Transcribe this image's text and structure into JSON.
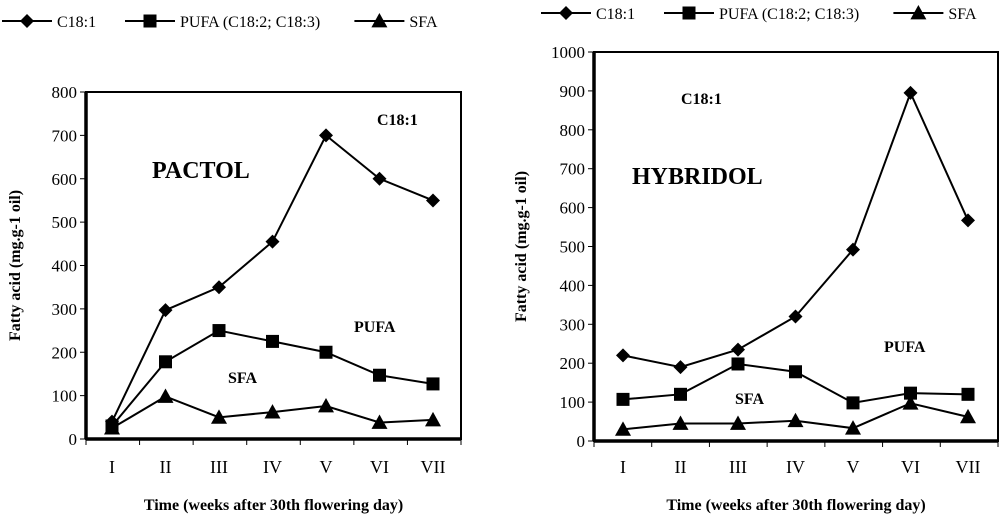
{
  "chart_data": [
    {
      "type": "line",
      "title": "PACTOL",
      "xlabel": "Time (weeks after 30th flowering day)",
      "ylabel": "Fatty acid (mg.g-1 oil)",
      "categories": [
        "I",
        "II",
        "III",
        "IV",
        "V",
        "VI",
        "VII"
      ],
      "ylim": [
        0,
        800
      ],
      "yticks": [
        0,
        100,
        200,
        300,
        400,
        500,
        600,
        700,
        800
      ],
      "legend": {
        "placement": "top",
        "entries": [
          "C18:1",
          "PUFA (C18:2; C18:3)",
          "SFA"
        ]
      },
      "series": [
        {
          "name": "C18:1",
          "marker": "diamond",
          "values": [
            40,
            297,
            350,
            455,
            700,
            600,
            550
          ]
        },
        {
          "name": "PUFA (C18:2; C18:3)",
          "marker": "square",
          "values": [
            30,
            178,
            250,
            225,
            200,
            147,
            127
          ]
        },
        {
          "name": "SFA",
          "marker": "triangle",
          "values": [
            25,
            98,
            50,
            62,
            76,
            38,
            44
          ]
        }
      ],
      "annotations": [
        "C18:1",
        "PUFA",
        "SFA"
      ],
      "grid": false
    },
    {
      "type": "line",
      "title": "HYBRIDOL",
      "xlabel": "Time (weeks after 30th flowering day)",
      "ylabel": "Fatty acid (mg.g-1 oil)",
      "categories": [
        "I",
        "II",
        "III",
        "IV",
        "V",
        "VI",
        "VII"
      ],
      "ylim": [
        0,
        1000
      ],
      "yticks": [
        0,
        100,
        200,
        300,
        400,
        500,
        600,
        700,
        800,
        900,
        1000
      ],
      "legend": {
        "placement": "top",
        "entries": [
          "C18:1",
          "PUFA (C18:2; C18:3)",
          "SFA"
        ]
      },
      "series": [
        {
          "name": "C18:1",
          "marker": "diamond",
          "values": [
            220,
            190,
            235,
            320,
            492,
            895,
            567
          ]
        },
        {
          "name": "PUFA (C18:2; C18:3)",
          "marker": "square",
          "values": [
            107,
            120,
            198,
            178,
            98,
            123,
            120
          ]
        },
        {
          "name": "SFA",
          "marker": "triangle",
          "values": [
            30,
            45,
            45,
            52,
            33,
            97,
            62
          ]
        }
      ],
      "annotations": [
        "C18:1",
        "PUFA",
        "SFA"
      ],
      "grid": false
    }
  ]
}
